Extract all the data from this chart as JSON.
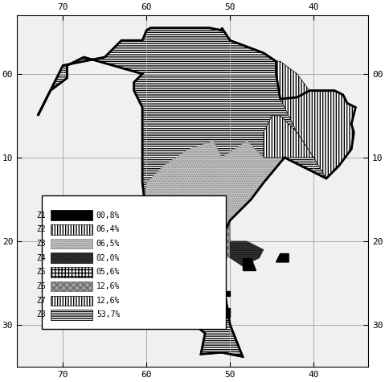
{
  "title": "",
  "background_color": "#ffffff",
  "grid_color": "#cccccc",
  "x_ticks": [
    70,
    60,
    50,
    40
  ],
  "y_ticks": [
    0,
    10,
    20,
    30
  ],
  "x_tick_labels": [
    "70",
    "60",
    "50",
    "40"
  ],
  "y_tick_labels": [
    "00",
    "10",
    "20",
    "30"
  ],
  "zones": [
    {
      "label": "Z1",
      "pct": "00,8%",
      "hatch": null,
      "facecolor": "#000000",
      "edgecolor": "#000000"
    },
    {
      "label": "Z2",
      "pct": "06,4%",
      "hatch": "||||",
      "facecolor": "#ffffff",
      "edgecolor": "#000000"
    },
    {
      "label": "Z3",
      "pct": "06,5%",
      "hatch": "....",
      "facecolor": "#aaaaaa",
      "edgecolor": "#888888"
    },
    {
      "label": "Z4",
      "pct": "02,0%",
      "hatch": "....",
      "facecolor": "#333333",
      "edgecolor": "#000000"
    },
    {
      "label": "Z5",
      "pct": "05,6%",
      "hatch": "+++",
      "facecolor": "#ffffff",
      "edgecolor": "#000000"
    },
    {
      "label": "Z6",
      "pct": "12,6%",
      "hatch": "xxxx",
      "facecolor": "#bbbbbb",
      "edgecolor": "#888888"
    },
    {
      "label": "Z7",
      "pct": "12,6%",
      "hatch": "||||",
      "facecolor": "#ffffff",
      "edgecolor": "#000000"
    },
    {
      "label": "Z8",
      "pct": "53,7%",
      "hatch": "----",
      "facecolor": "#ffffff",
      "edgecolor": "#000000"
    }
  ],
  "figsize": [
    4.79,
    4.75
  ],
  "dpi": 100
}
